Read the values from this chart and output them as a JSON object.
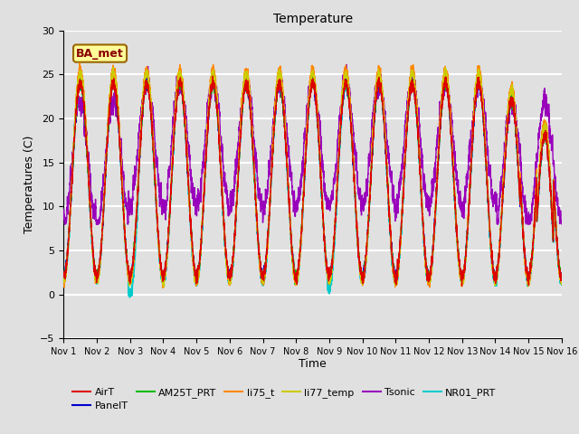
{
  "title": "Temperature",
  "xlabel": "Time",
  "ylabel": "Temperatures (C)",
  "ylim": [
    -5,
    30
  ],
  "xlim": [
    0,
    15
  ],
  "annotation_text": "BA_met",
  "bg_color": "#e0e0e0",
  "legend_entries": [
    "AirT",
    "PanelT",
    "AM25T_PRT",
    "li75_t",
    "li77_temp",
    "Tsonic",
    "NR01_PRT"
  ],
  "legend_colors": [
    "#dd0000",
    "#0000cc",
    "#00bb00",
    "#ff8800",
    "#cccc00",
    "#9900bb",
    "#00cccc"
  ],
  "yticks": [
    -5,
    0,
    5,
    10,
    15,
    20,
    25,
    30
  ],
  "xtick_labels": [
    "Nov 1",
    "Nov 2",
    "Nov 3",
    "Nov 4",
    "Nov 5",
    "Nov 6",
    "Nov 7",
    "Nov 8",
    "Nov 9",
    "Nov 10",
    "Nov 11",
    "Nov 12",
    "Nov 13",
    "Nov 14",
    "Nov 15",
    "Nov 16"
  ]
}
